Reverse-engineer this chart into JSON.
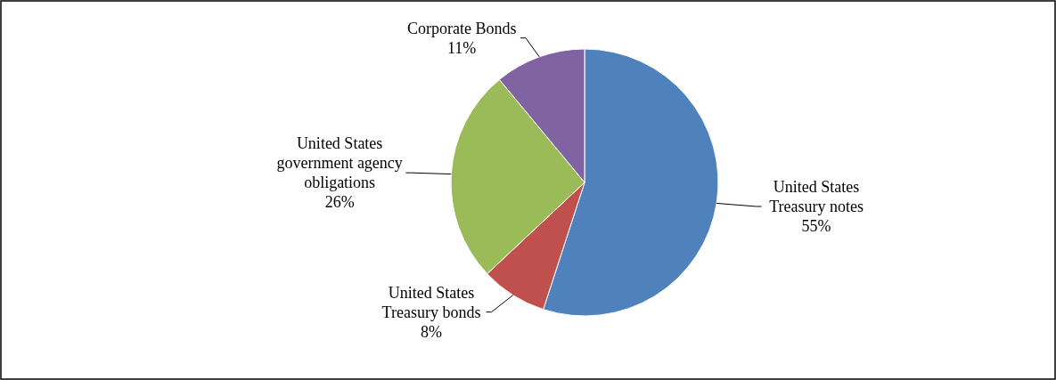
{
  "chart_data": {
    "type": "pie",
    "categories": [
      "United States\nTreasury notes",
      "United States\nTreasury bonds",
      "United States\ngovernment agency\nobligations",
      "Corporate Bonds"
    ],
    "values": [
      55,
      8,
      26,
      11
    ],
    "colors": [
      "#4f81bd",
      "#c0504d",
      "#9bbb59",
      "#8064a2"
    ],
    "value_labels": [
      "55%",
      "8%",
      "26%",
      "11%"
    ]
  }
}
